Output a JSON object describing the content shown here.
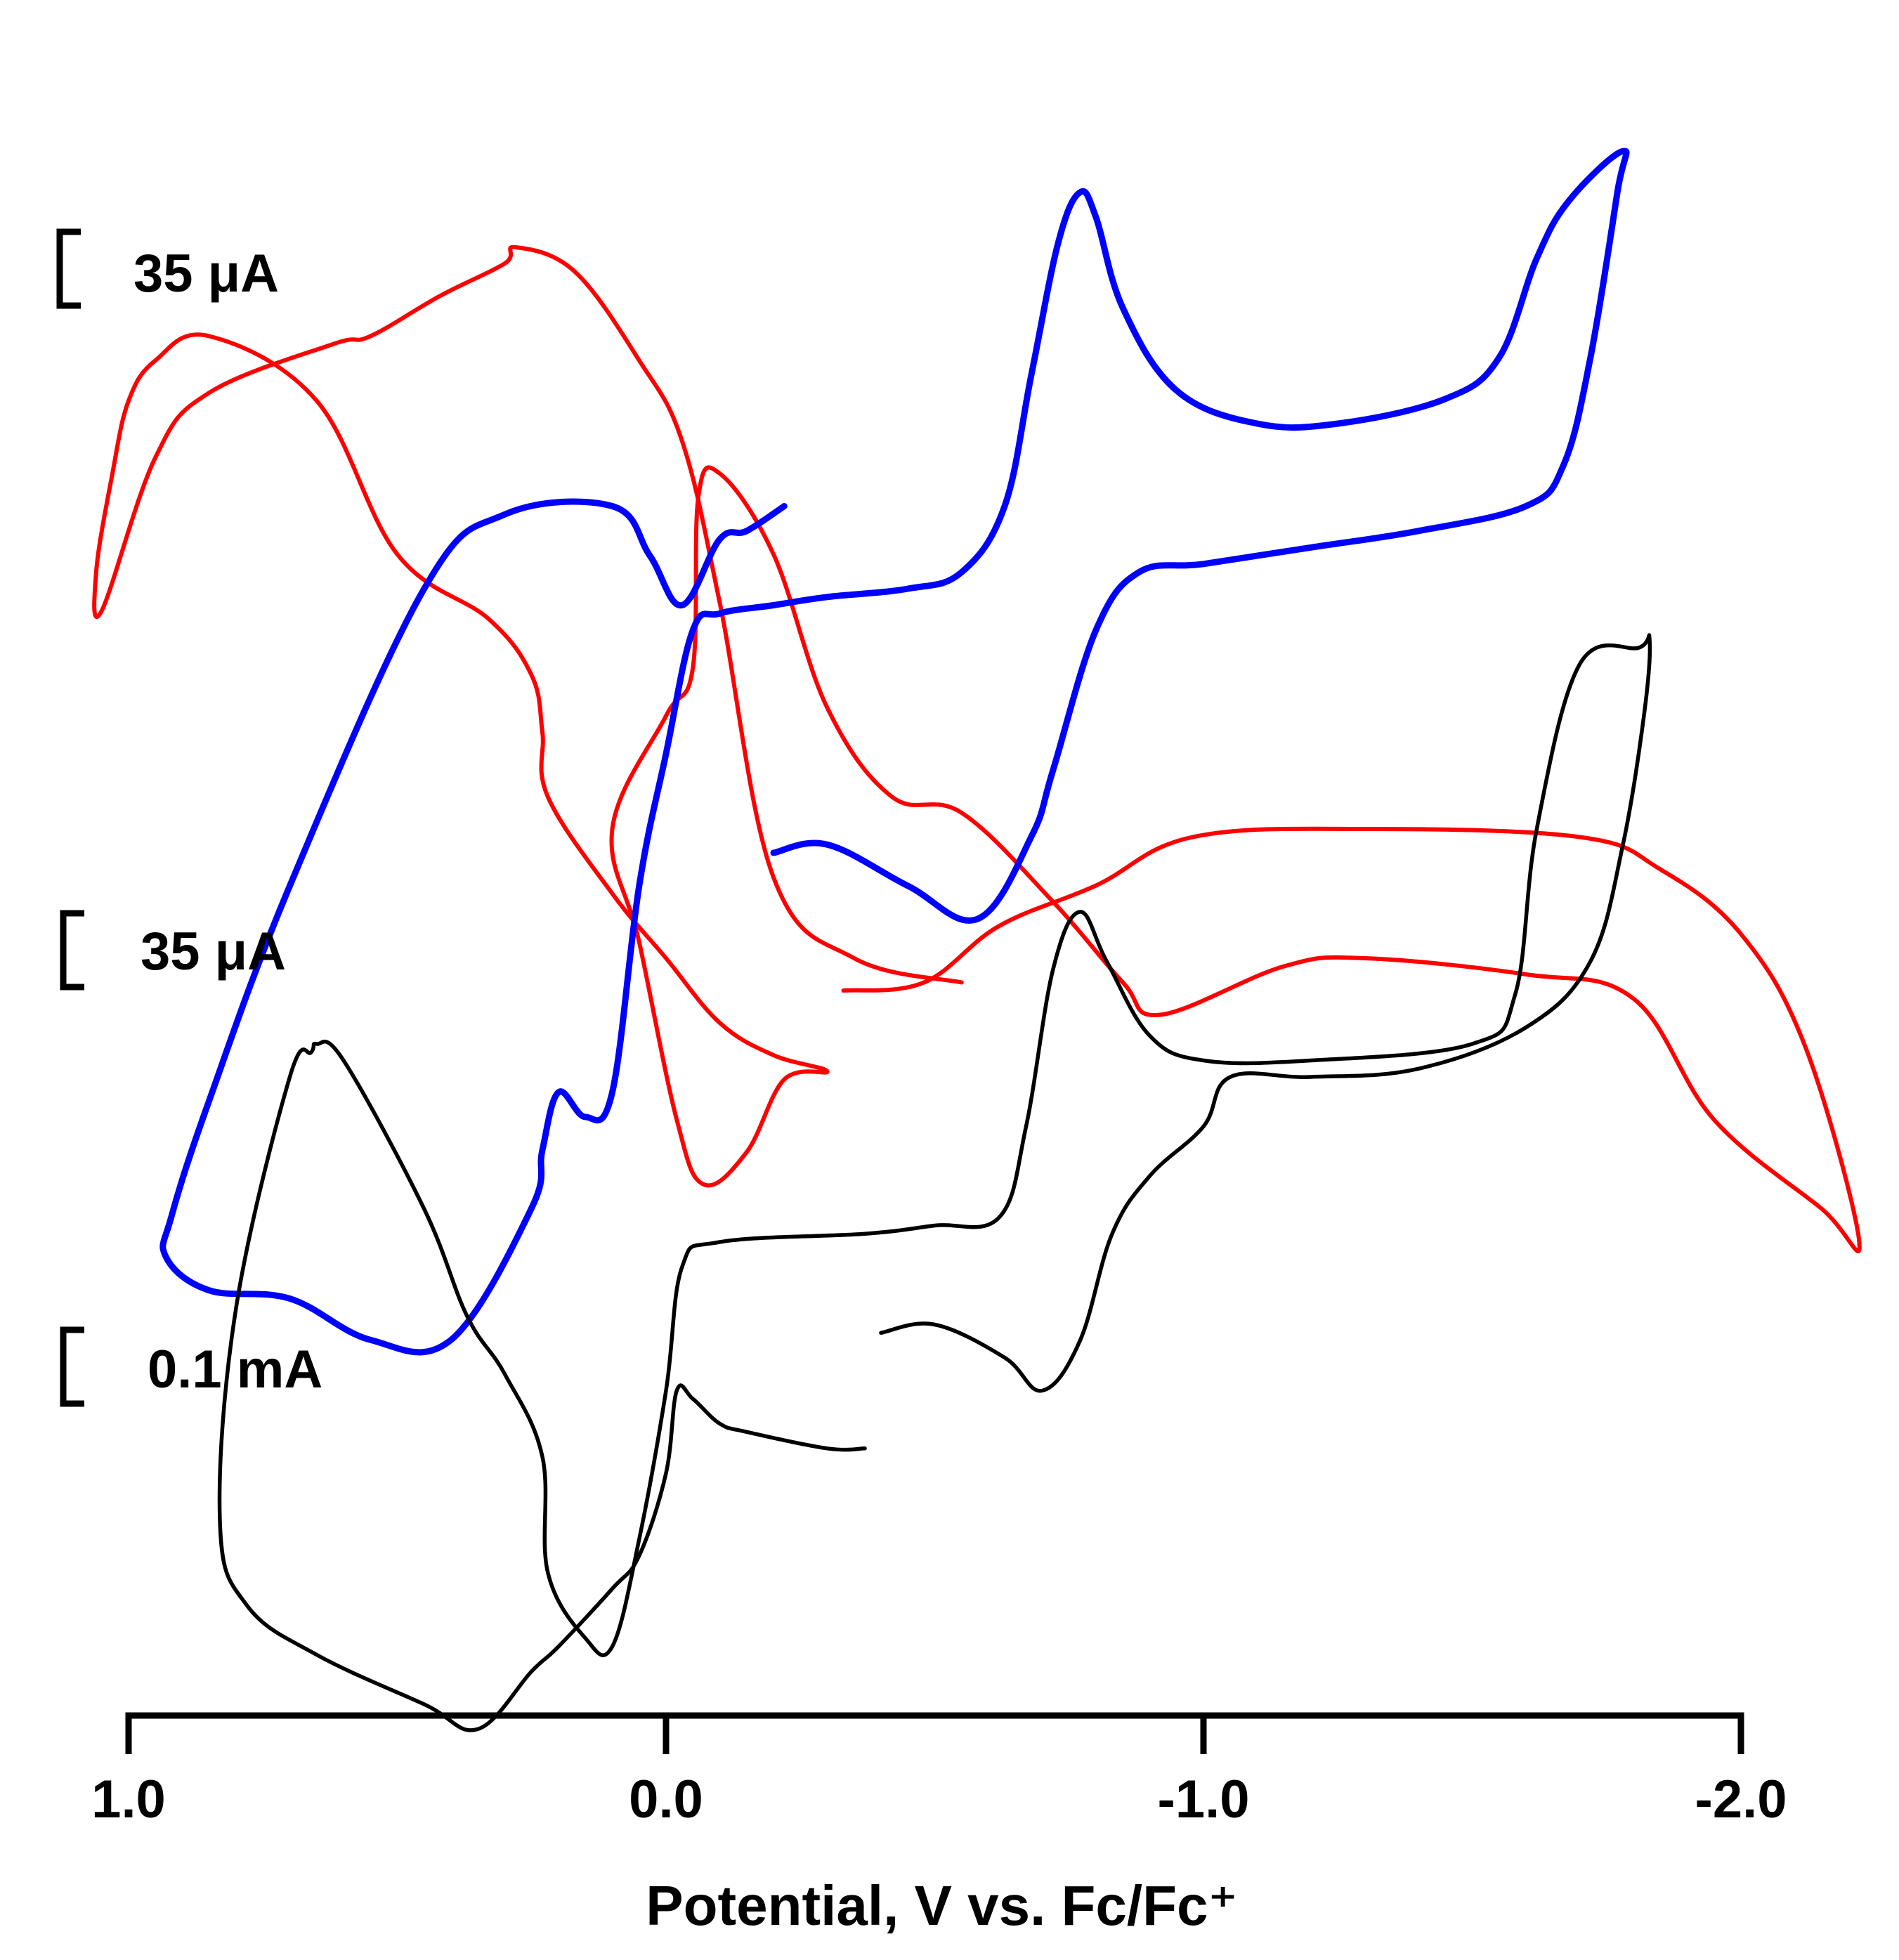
{
  "chart_data": {
    "type": "line",
    "title": "",
    "xlabel": "Potential, V vs. Fc/Fc⁺",
    "ylabel": "",
    "xlim": [
      1.0,
      -2.0
    ],
    "x_ticks": [
      1.0,
      0.0,
      -1.0,
      -2.0
    ],
    "x_tick_labels": [
      "1.0",
      "0.0",
      "-1.0",
      "-2.0"
    ],
    "series": [
      {
        "name": "red",
        "color": "#ff0000",
        "scale_label": "35 μA",
        "points": [
          [
            -0.33,
            -100
          ],
          [
            -0.48,
            -95
          ],
          [
            -0.62,
            -60
          ],
          [
            -0.8,
            -35
          ],
          [
            -0.98,
            -5
          ],
          [
            -1.3,
            0
          ],
          [
            -1.7,
            -5
          ],
          [
            -1.85,
            -25
          ],
          [
            -2.0,
            -65
          ],
          [
            -2.12,
            -135
          ],
          [
            -2.22,
            -255
          ],
          [
            -2.15,
            -235
          ],
          [
            -1.95,
            -180
          ],
          [
            -1.8,
            -105
          ],
          [
            -1.6,
            -90
          ],
          [
            -1.3,
            -80
          ],
          [
            -1.15,
            -85
          ],
          [
            -0.92,
            -115
          ],
          [
            -0.85,
            -95
          ],
          [
            -0.72,
            -45
          ],
          [
            -0.55,
            10
          ],
          [
            -0.42,
            20
          ],
          [
            -0.3,
            75
          ],
          [
            -0.2,
            170
          ],
          [
            -0.1,
            220
          ],
          [
            -0.06,
            205
          ],
          [
            -0.05,
            100
          ],
          [
            0.0,
            70
          ],
          [
            0.1,
            0
          ],
          [
            0.05,
            -70
          ],
          [
            -0.02,
            -180
          ],
          [
            -0.07,
            -220
          ],
          [
            -0.15,
            -200
          ],
          [
            -0.22,
            -155
          ],
          [
            -0.3,
            -150
          ],
          [
            -0.2,
            -140
          ],
          [
            -0.1,
            -120
          ],
          [
            0.0,
            -80
          ],
          [
            0.1,
            -40
          ],
          [
            0.22,
            20
          ],
          [
            0.23,
            60
          ],
          [
            0.25,
            95
          ],
          [
            0.33,
            130
          ],
          [
            0.5,
            170
          ],
          [
            0.65,
            265
          ],
          [
            0.85,
            305
          ],
          [
            0.95,
            290
          ],
          [
            1.0,
            265
          ],
          [
            1.03,
            220
          ],
          [
            1.06,
            160
          ],
          [
            1.05,
            135
          ],
          [
            0.95,
            230
          ],
          [
            0.85,
            270
          ],
          [
            0.62,
            300
          ],
          [
            0.55,
            305
          ],
          [
            0.42,
            330
          ],
          [
            0.3,
            350
          ],
          [
            0.28,
            360
          ],
          [
            0.17,
            345
          ],
          [
            0.05,
            290
          ],
          [
            -0.03,
            240
          ],
          [
            -0.1,
            140
          ],
          [
            -0.2,
            -30
          ],
          [
            -0.35,
            -80
          ],
          [
            -0.55,
            -95
          ]
        ]
      },
      {
        "name": "blue",
        "color": "#0000ff",
        "scale_label": "35 μA",
        "points": [
          [
            -0.2,
            260
          ],
          [
            -0.3,
            265
          ],
          [
            -0.45,
            240
          ],
          [
            -0.58,
            220
          ],
          [
            -0.68,
            270
          ],
          [
            -0.72,
            310
          ],
          [
            -0.8,
            395
          ],
          [
            -0.88,
            430
          ],
          [
            -1.0,
            435
          ],
          [
            -1.2,
            445
          ],
          [
            -1.4,
            455
          ],
          [
            -1.6,
            470
          ],
          [
            -1.67,
            495
          ],
          [
            -1.72,
            560
          ],
          [
            -1.77,
            660
          ],
          [
            -1.78,
            685
          ],
          [
            -1.68,
            655
          ],
          [
            -1.62,
            620
          ],
          [
            -1.55,
            560
          ],
          [
            -1.45,
            535
          ],
          [
            -1.25,
            520
          ],
          [
            -1.1,
            520
          ],
          [
            -0.95,
            540
          ],
          [
            -0.85,
            590
          ],
          [
            -0.8,
            645
          ],
          [
            -0.77,
            660
          ],
          [
            -0.73,
            630
          ],
          [
            -0.68,
            550
          ],
          [
            -0.63,
            470
          ],
          [
            -0.55,
            430
          ],
          [
            -0.45,
            420
          ],
          [
            -0.3,
            415
          ],
          [
            -0.2,
            410
          ],
          [
            -0.1,
            405
          ],
          [
            -0.05,
            395
          ],
          [
            0.0,
            320
          ],
          [
            0.05,
            240
          ],
          [
            0.1,
            115
          ],
          [
            0.15,
            100
          ],
          [
            0.2,
            115
          ],
          [
            0.23,
            80
          ],
          [
            0.25,
            45
          ],
          [
            0.4,
            -35
          ],
          [
            0.55,
            -35
          ],
          [
            0.7,
            -10
          ],
          [
            0.85,
            -5
          ],
          [
            0.93,
            15
          ],
          [
            0.92,
            40
          ],
          [
            0.85,
            110
          ],
          [
            0.7,
            240
          ],
          [
            0.45,
            420
          ],
          [
            0.3,
            465
          ],
          [
            0.1,
            470
          ],
          [
            0.03,
            440
          ],
          [
            -0.03,
            410
          ],
          [
            -0.1,
            450
          ],
          [
            -0.15,
            455
          ],
          [
            -0.22,
            470
          ]
        ]
      },
      {
        "name": "black",
        "color": "#000000",
        "scale_label": "0.1 mA",
        "points": [
          [
            -0.4,
            165
          ],
          [
            -0.5,
            170
          ],
          [
            -0.63,
            150
          ],
          [
            -0.7,
            130
          ],
          [
            -0.77,
            160
          ],
          [
            -0.83,
            225
          ],
          [
            -0.9,
            260
          ],
          [
            -1.0,
            290
          ],
          [
            -1.05,
            320
          ],
          [
            -1.2,
            320
          ],
          [
            -1.4,
            325
          ],
          [
            -1.6,
            350
          ],
          [
            -1.72,
            390
          ],
          [
            -1.78,
            460
          ],
          [
            -1.82,
            540
          ],
          [
            -1.83,
            585
          ],
          [
            -1.81,
            580
          ],
          [
            -1.7,
            570
          ],
          [
            -1.62,
            470
          ],
          [
            -1.58,
            370
          ],
          [
            -1.5,
            340
          ],
          [
            -1.2,
            330
          ],
          [
            -1.0,
            330
          ],
          [
            -0.9,
            345
          ],
          [
            -0.82,
            390
          ],
          [
            -0.77,
            420
          ],
          [
            -0.72,
            385
          ],
          [
            -0.67,
            290
          ],
          [
            -0.62,
            235
          ],
          [
            -0.5,
            230
          ],
          [
            -0.37,
            225
          ],
          [
            -0.1,
            220
          ],
          [
            -0.03,
            205
          ],
          [
            0.0,
            130
          ],
          [
            0.05,
            40
          ],
          [
            0.1,
            -25
          ],
          [
            0.15,
            -20
          ],
          [
            0.22,
            20
          ],
          [
            0.23,
            90
          ],
          [
            0.3,
            140
          ],
          [
            0.37,
            175
          ],
          [
            0.45,
            240
          ],
          [
            0.6,
            330
          ],
          [
            0.65,
            340
          ],
          [
            0.66,
            335
          ],
          [
            0.7,
            320
          ],
          [
            0.8,
            180
          ],
          [
            0.83,
            50
          ],
          [
            0.78,
            0
          ],
          [
            0.65,
            -30
          ],
          [
            0.45,
            -60
          ],
          [
            0.35,
            -75
          ],
          [
            0.25,
            -40
          ],
          [
            0.2,
            -25
          ],
          [
            0.1,
            10
          ],
          [
            0.05,
            30
          ],
          [
            0.0,
            80
          ],
          [
            -0.02,
            130
          ],
          [
            -0.05,
            125
          ],
          [
            -0.1,
            110
          ],
          [
            -0.15,
            105
          ],
          [
            -0.3,
            95
          ],
          [
            -0.37,
            95
          ]
        ]
      }
    ]
  }
}
